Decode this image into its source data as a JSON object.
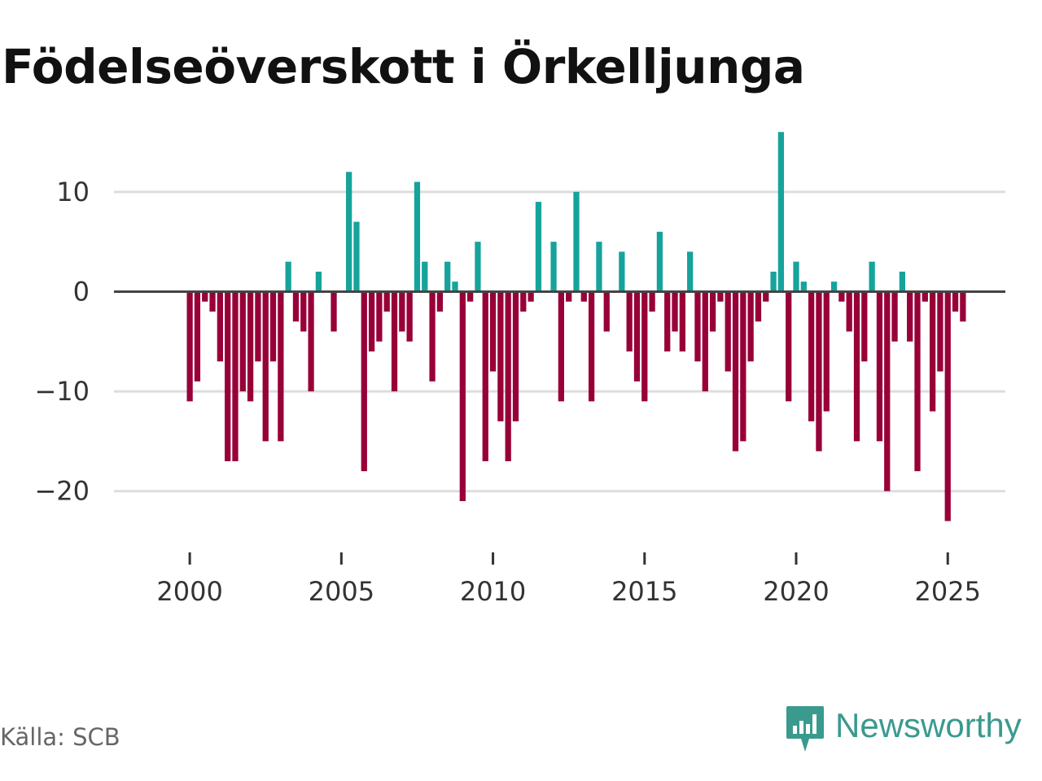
{
  "title": "Födelseöverskott i Örkelljunga",
  "source": "Källa: SCB",
  "brand": "Newsworthy",
  "colors": {
    "positive": "#16a39b",
    "negative": "#980038",
    "brand": "#3a9a8e"
  },
  "chart_data": {
    "type": "bar",
    "title": "Födelseöverskott i Örkelljunga",
    "xlabel": "",
    "ylabel": "",
    "frequency": "monthly",
    "start": "2000-01",
    "ylim": [
      -25,
      17
    ],
    "xlim": [
      1997.5,
      2026.9
    ],
    "yticks": [
      10,
      0,
      -10,
      -20
    ],
    "ytick_labels": [
      "10",
      "0",
      "−10",
      "−20"
    ],
    "xticks": [
      2000,
      2005,
      2010,
      2015,
      2020,
      2025
    ],
    "xtick_labels": [
      "2000",
      "2005",
      "2010",
      "2015",
      "2020",
      "2025"
    ],
    "values": [
      -11,
      -9,
      -1,
      -2,
      -7,
      -17,
      -17,
      -10,
      -11,
      -7,
      -15,
      -7,
      -15,
      3,
      -3,
      -4,
      -10,
      2,
      0,
      -4,
      0,
      12,
      7,
      -18,
      -6,
      -5,
      -2,
      -10,
      -4,
      -5,
      11,
      3,
      -9,
      -2,
      3,
      1,
      -21,
      -1,
      5,
      -17,
      -8,
      -13,
      -17,
      -13,
      -2,
      -1,
      9,
      0,
      5,
      -11,
      -1,
      10,
      -1,
      -11,
      5,
      -4,
      0,
      4,
      -6,
      -9,
      -11,
      -2,
      6,
      -6,
      -4,
      -6,
      4,
      -7,
      -10,
      -4,
      -1,
      -8,
      -16,
      -15,
      -7,
      -3,
      -1,
      2,
      16,
      -11,
      3,
      1,
      -13,
      -16,
      -12,
      1,
      -1,
      -4,
      -15,
      -7,
      3,
      -15,
      -20,
      -5,
      2,
      -5,
      -18,
      -1,
      -12,
      -8,
      -23,
      -2,
      -3
    ]
  }
}
